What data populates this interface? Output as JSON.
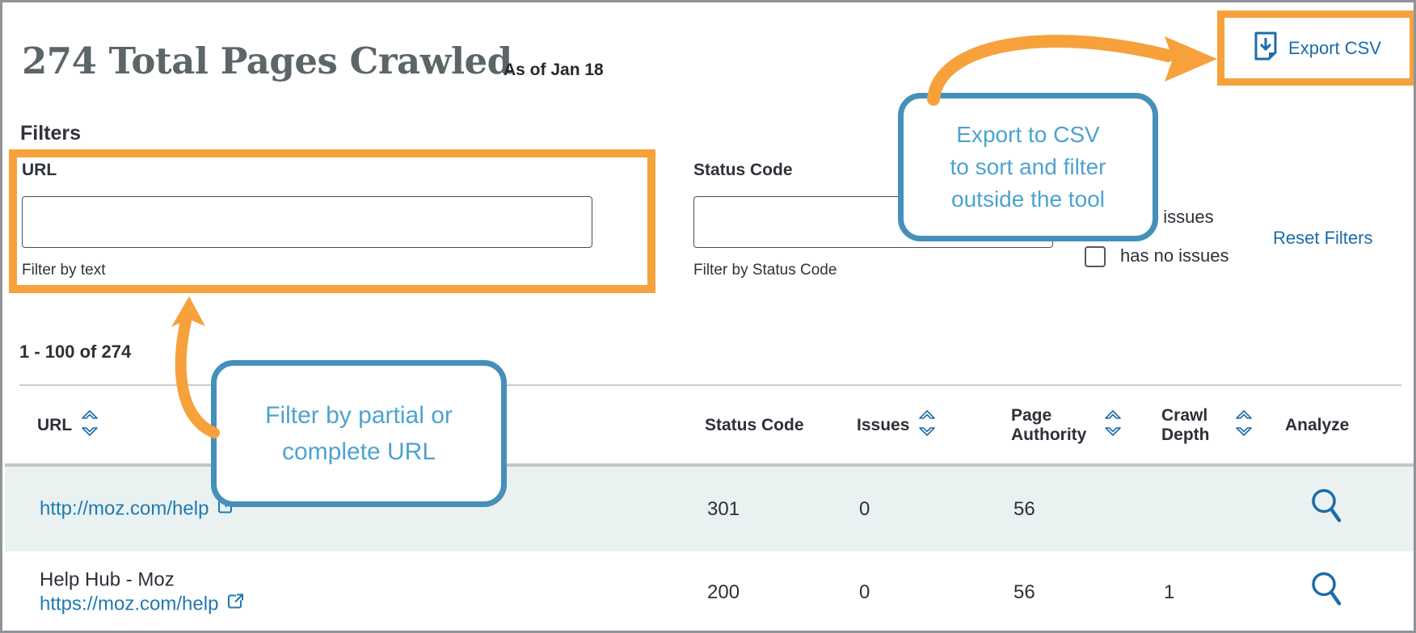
{
  "header": {
    "title": "274 Total Pages Crawled",
    "as_of": "As of Jan 18",
    "export_label": "Export CSV"
  },
  "filters": {
    "heading": "Filters",
    "url": {
      "label": "URL",
      "value": "",
      "hint": "Filter by text"
    },
    "status_code": {
      "label": "Status Code",
      "value": "",
      "hint": "Filter by Status Code"
    },
    "checkboxes": [
      {
        "label": "Has issues",
        "checked": false
      },
      {
        "label": "has no issues",
        "checked": false
      }
    ],
    "reset_label": "Reset Filters"
  },
  "pagination": {
    "text": "1 - 100 of 274"
  },
  "table": {
    "columns": [
      {
        "label": "URL",
        "sortable": true
      },
      {
        "label": "Status Code",
        "sortable": false
      },
      {
        "label": "Issues",
        "sortable": true
      },
      {
        "label": "Page Authority",
        "sortable": true
      },
      {
        "label": "Crawl Depth",
        "sortable": true
      },
      {
        "label": "Analyze",
        "sortable": false
      }
    ],
    "rows": [
      {
        "title": "",
        "url": "http://moz.com/help",
        "status_code": "301",
        "issues": "0",
        "page_authority": "56",
        "crawl_depth": "",
        "highlighted": true
      },
      {
        "title": "Help Hub - Moz",
        "url": "https://moz.com/help",
        "status_code": "200",
        "issues": "0",
        "page_authority": "56",
        "crawl_depth": "1",
        "highlighted": false
      }
    ]
  },
  "annotations": {
    "export_callout": {
      "lines": [
        "Export to CSV",
        "to sort and filter",
        "outside the tool"
      ]
    },
    "url_callout": {
      "lines": [
        "Filter by partial or",
        "complete URL"
      ]
    }
  },
  "colors": {
    "accent_orange": "#F7A13D",
    "callout_border": "#4590BA",
    "callout_text": "#4DA3CF",
    "link_blue": "#1B6CA8",
    "row_highlight": "#E9F2F1",
    "title_gray": "#5C6568"
  }
}
